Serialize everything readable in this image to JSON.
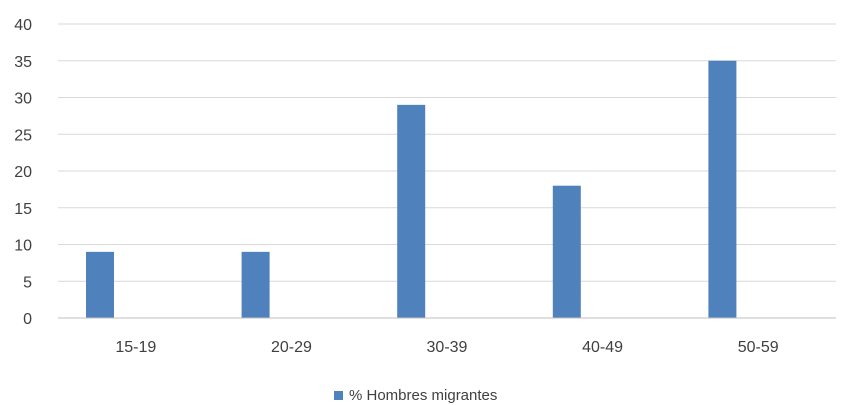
{
  "chart_data": {
    "type": "bar",
    "categories": [
      "15-19",
      "20-29",
      "30-39",
      "40-49",
      "50-59"
    ],
    "series": [
      {
        "name": "% Hombres migrantes",
        "values": [
          9,
          9,
          29,
          18,
          35
        ],
        "color": "#4f81bd"
      }
    ],
    "ylim": [
      0,
      40
    ],
    "yticks": [
      "0",
      "5",
      "10",
      "15",
      "20",
      "25",
      "30",
      "35",
      "40"
    ],
    "grid": true,
    "legend_position": "bottom"
  }
}
